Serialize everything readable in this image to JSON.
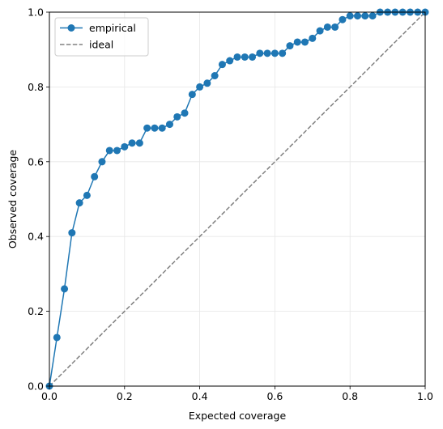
{
  "chart_data": {
    "type": "line",
    "title": "",
    "xlabel": "Expected coverage",
    "ylabel": "Observed coverage",
    "xlim": [
      0,
      1
    ],
    "ylim": [
      0,
      1
    ],
    "grid": true,
    "legend_position": "top-left",
    "x_ticks": [
      "0.0",
      "0.2",
      "0.4",
      "0.6",
      "0.8",
      "1.0"
    ],
    "y_ticks": [
      "0.0",
      "0.2",
      "0.4",
      "0.6",
      "0.8",
      "1.0"
    ],
    "series": [
      {
        "name": "empirical",
        "style": "solid line with circle markers",
        "color": "#1f77b4",
        "x": [
          0.0,
          0.02,
          0.04,
          0.06,
          0.08,
          0.1,
          0.12,
          0.14,
          0.16,
          0.18,
          0.2,
          0.22,
          0.24,
          0.26,
          0.28,
          0.3,
          0.32,
          0.34,
          0.36,
          0.38,
          0.4,
          0.42,
          0.44,
          0.46,
          0.48,
          0.5,
          0.52,
          0.54,
          0.56,
          0.58,
          0.6,
          0.62,
          0.64,
          0.66,
          0.68,
          0.7,
          0.72,
          0.74,
          0.76,
          0.78,
          0.8,
          0.82,
          0.84,
          0.86,
          0.88,
          0.9,
          0.92,
          0.94,
          0.96,
          0.98,
          1.0
        ],
        "y": [
          0.0,
          0.13,
          0.26,
          0.41,
          0.49,
          0.51,
          0.56,
          0.6,
          0.63,
          0.63,
          0.64,
          0.65,
          0.65,
          0.69,
          0.69,
          0.69,
          0.7,
          0.72,
          0.73,
          0.78,
          0.8,
          0.81,
          0.83,
          0.86,
          0.87,
          0.88,
          0.88,
          0.88,
          0.89,
          0.89,
          0.89,
          0.89,
          0.91,
          0.92,
          0.92,
          0.93,
          0.95,
          0.96,
          0.96,
          0.98,
          0.99,
          0.99,
          0.99,
          0.99,
          1.0,
          1.0,
          1.0,
          1.0,
          1.0,
          1.0,
          1.0
        ]
      },
      {
        "name": "ideal",
        "style": "dashed line",
        "color": "#808080",
        "x": [
          0.0,
          1.0
        ],
        "y": [
          0.0,
          1.0
        ]
      }
    ]
  }
}
